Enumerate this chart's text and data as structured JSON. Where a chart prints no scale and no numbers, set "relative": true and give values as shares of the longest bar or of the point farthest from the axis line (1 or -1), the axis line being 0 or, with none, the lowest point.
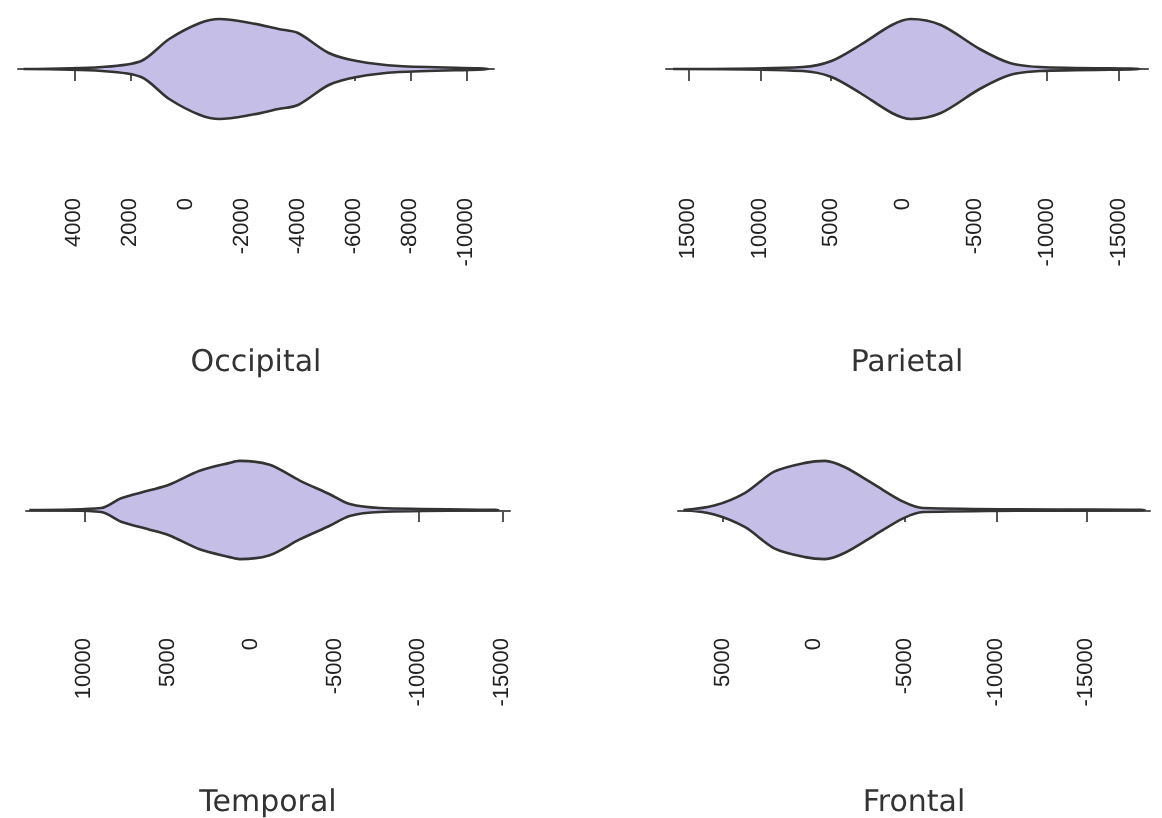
{
  "chart_data": [
    {
      "type": "area",
      "relative": true,
      "xlabel": "Occipital",
      "color": "#c5bfe8",
      "xlim": [
        6000,
        -11000
      ],
      "xticks": [
        4000,
        2000,
        0,
        -2000,
        -4000,
        -6000,
        -8000,
        -10000
      ],
      "x": [
        5800,
        3000,
        1600,
        600,
        -500,
        -1200,
        -2300,
        -3300,
        -4000,
        -5100,
        -6100,
        -7600,
        -10800
      ],
      "values": [
        0,
        0.04,
        0.16,
        0.6,
        0.92,
        1,
        0.92,
        0.8,
        0.72,
        0.32,
        0.16,
        0.06,
        0
      ]
    },
    {
      "type": "area",
      "relative": true,
      "xlabel": "Parietal",
      "color": "#c5bfe8",
      "xlim": [
        16500,
        -17000
      ],
      "xticks": [
        15000,
        10000,
        5000,
        0,
        -5000,
        -10000,
        -15000
      ],
      "x": [
        16000,
        7000,
        5000,
        3000,
        800,
        -500,
        -2600,
        -5300,
        -7400,
        -9500,
        -16400
      ],
      "values": [
        0,
        0.04,
        0.16,
        0.48,
        0.88,
        1,
        0.88,
        0.4,
        0.12,
        0.04,
        0
      ]
    },
    {
      "type": "area",
      "relative": true,
      "xlabel": "Temporal",
      "color": "#c5bfe8",
      "xlim": [
        13500,
        -15500
      ],
      "xticks": [
        10000,
        5000,
        0,
        -5000,
        -10000,
        -15000
      ],
      "x": [
        13300,
        9000,
        7800,
        6100,
        4900,
        3100,
        1300,
        700,
        -1100,
        -2900,
        -4700,
        -5900,
        -7700,
        -14800
      ],
      "values": [
        0,
        0.04,
        0.24,
        0.4,
        0.52,
        0.8,
        0.96,
        1,
        0.92,
        0.6,
        0.32,
        0.12,
        0.04,
        0
      ]
    },
    {
      "type": "area",
      "relative": true,
      "xlabel": "Frontal",
      "color": "#c5bfe8",
      "xlim": [
        7500,
        -18500
      ],
      "xticks": [
        5000,
        0,
        -5000,
        -10000,
        -15000
      ],
      "x": [
        7200,
        5500,
        3800,
        2200,
        500,
        -600,
        -1700,
        -3300,
        -4900,
        -6000,
        -18200
      ],
      "values": [
        0,
        0.09,
        0.35,
        0.78,
        0.96,
        1,
        0.87,
        0.52,
        0.17,
        0.04,
        0
      ]
    }
  ]
}
